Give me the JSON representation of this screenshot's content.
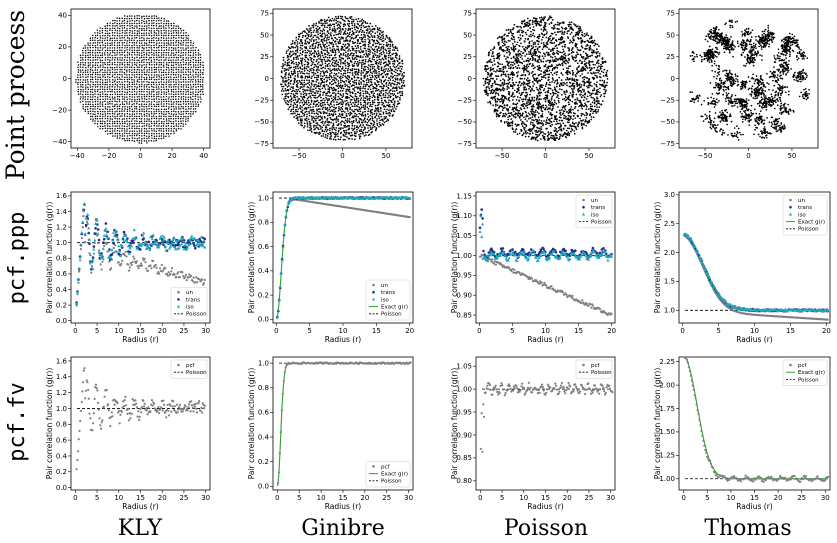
{
  "row_labels": [
    "Point process",
    "pcf.ppp",
    "pcf.fv"
  ],
  "column_labels": [
    "KLY",
    "Ginibre",
    "Poisson",
    "Thomas"
  ],
  "colors": {
    "un": "#808080",
    "trans": "#1f2f8f",
    "iso": "#20a8b8",
    "exact": "#2ca02c",
    "pcf": "#808080",
    "poisson_line": "#000000",
    "points": "#000000"
  },
  "chart_data": [
    {
      "id": "pp-kly",
      "type": "scatter",
      "row": 0,
      "col": 0,
      "pattern": "lattice",
      "radius": 41,
      "xlim": [
        -44,
        44
      ],
      "ylim": [
        -44,
        44
      ],
      "xticks": [
        -40,
        -20,
        0,
        20,
        40
      ],
      "yticks": [
        -40,
        -20,
        0,
        20,
        40
      ],
      "xtick_labels": [
        "−40",
        "−20",
        "0",
        "20",
        "40"
      ],
      "ytick_labels": [
        "−40",
        "−20",
        "0",
        "20",
        "40"
      ]
    },
    {
      "id": "pp-ginibre",
      "type": "scatter",
      "row": 0,
      "col": 1,
      "pattern": "repulsive",
      "radius": 72,
      "xlim": [
        -80,
        80
      ],
      "ylim": [
        -80,
        80
      ],
      "xticks": [
        -50,
        0,
        50
      ],
      "yticks": [
        -75,
        -50,
        -25,
        0,
        25,
        50,
        75
      ],
      "xtick_labels": [
        "−50",
        "0",
        "50"
      ],
      "ytick_labels": [
        "−75",
        "−50",
        "−25",
        "0",
        "25",
        "50",
        "75"
      ]
    },
    {
      "id": "pp-poisson",
      "type": "scatter",
      "row": 0,
      "col": 2,
      "pattern": "random",
      "radius": 72,
      "xlim": [
        -80,
        80
      ],
      "ylim": [
        -80,
        80
      ],
      "xticks": [
        -50,
        0,
        50
      ],
      "yticks": [
        -75,
        -50,
        -25,
        0,
        25,
        50,
        75
      ],
      "xtick_labels": [
        "−50",
        "0",
        "50"
      ],
      "ytick_labels": [
        "−75",
        "−50",
        "−25",
        "0",
        "25",
        "50",
        "75"
      ]
    },
    {
      "id": "pp-thomas",
      "type": "scatter",
      "row": 0,
      "col": 3,
      "pattern": "clustered",
      "radius": 72,
      "xlim": [
        -80,
        80
      ],
      "ylim": [
        -80,
        80
      ],
      "xticks": [
        -50,
        0,
        50
      ],
      "yticks": [
        -75,
        -50,
        -25,
        0,
        25,
        50,
        75
      ],
      "xtick_labels": [
        "−50",
        "0",
        "50"
      ],
      "ytick_labels": [
        "−75",
        "−50",
        "−25",
        "0",
        "25",
        "50",
        "75"
      ]
    },
    {
      "id": "ppp-kly",
      "type": "scatter",
      "row": 1,
      "col": 0,
      "model": "kly",
      "xlim": [
        -1,
        31
      ],
      "ylim": [
        -0.03,
        1.65
      ],
      "xticks": [
        0,
        5,
        10,
        15,
        20,
        25,
        30
      ],
      "yticks": [
        0,
        0.2,
        0.4,
        0.6,
        0.8,
        1.0,
        1.2,
        1.4,
        1.6
      ],
      "ytick_labels": [
        "0.0",
        "0.2",
        "0.4",
        "0.6",
        "0.8",
        "1.0",
        "1.2",
        "1.4",
        "1.6"
      ],
      "xlabel": "Radius (r)",
      "ylabel": "Pair correlation function (g(r))",
      "series": [
        {
          "name": "un",
          "kind": "dots"
        },
        {
          "name": "trans",
          "kind": "dots"
        },
        {
          "name": "iso",
          "kind": "triangles"
        },
        {
          "name": "Poisson",
          "kind": "dashed"
        }
      ],
      "legend": "bottom-right"
    },
    {
      "id": "ppp-ginibre",
      "type": "scatter",
      "row": 1,
      "col": 1,
      "model": "ginibre",
      "xlim": [
        -0.5,
        20.5
      ],
      "ylim": [
        -0.03,
        1.05
      ],
      "xticks": [
        0,
        5,
        10,
        15,
        20
      ],
      "yticks": [
        0,
        0.2,
        0.4,
        0.6,
        0.8,
        1.0
      ],
      "ytick_labels": [
        "0.0",
        "0.2",
        "0.4",
        "0.6",
        "0.8",
        "1.0"
      ],
      "xlabel": "Radius (r)",
      "ylabel": "Pair correlation function (g(r))",
      "series": [
        {
          "name": "un",
          "kind": "dots"
        },
        {
          "name": "trans",
          "kind": "dots"
        },
        {
          "name": "iso",
          "kind": "triangles"
        },
        {
          "name": "Exact g(r)",
          "kind": "line"
        },
        {
          "name": "Poisson",
          "kind": "dashed"
        }
      ],
      "legend": "bottom-right"
    },
    {
      "id": "ppp-poisson",
      "type": "scatter",
      "row": 1,
      "col": 2,
      "model": "poisson",
      "xlim": [
        -0.5,
        20.5
      ],
      "ylim": [
        0.83,
        1.16
      ],
      "xticks": [
        0,
        5,
        10,
        15,
        20
      ],
      "yticks": [
        0.85,
        0.9,
        0.95,
        1.0,
        1.05,
        1.1,
        1.15
      ],
      "ytick_labels": [
        "0.85",
        "0.90",
        "0.95",
        "1.00",
        "1.05",
        "1.10",
        "1.15"
      ],
      "xlabel": "Radius (r)",
      "ylabel": "Pair correlation function (g(r))",
      "series": [
        {
          "name": "un",
          "kind": "dots"
        },
        {
          "name": "trans",
          "kind": "dots"
        },
        {
          "name": "iso",
          "kind": "triangles"
        },
        {
          "name": "Poisson",
          "kind": "dashed"
        }
      ],
      "legend": "top-right"
    },
    {
      "id": "ppp-thomas",
      "type": "scatter",
      "row": 1,
      "col": 3,
      "model": "thomas",
      "xlim": [
        -0.5,
        20.5
      ],
      "ylim": [
        0.78,
        3.05
      ],
      "xticks": [
        0,
        5,
        10,
        15,
        20
      ],
      "yticks": [
        1.0,
        1.5,
        2.0,
        2.5,
        3.0
      ],
      "ytick_labels": [
        "1.0",
        "1.5",
        "2.0",
        "2.5",
        "3.0"
      ],
      "xlabel": "Radius (r)",
      "ylabel": "Pair correlation function (g(r))",
      "series": [
        {
          "name": "un",
          "kind": "dots"
        },
        {
          "name": "trans",
          "kind": "dots"
        },
        {
          "name": "iso",
          "kind": "triangles"
        },
        {
          "name": "Exact g(r)",
          "kind": "line"
        },
        {
          "name": "Poisson",
          "kind": "dashed"
        }
      ],
      "legend": "top-right"
    },
    {
      "id": "fv-kly",
      "type": "scatter",
      "row": 2,
      "col": 0,
      "model": "kly",
      "xlim": [
        -1,
        31
      ],
      "ylim": [
        -0.03,
        1.65
      ],
      "xticks": [
        0,
        5,
        10,
        15,
        20,
        25,
        30
      ],
      "yticks": [
        0,
        0.2,
        0.4,
        0.6,
        0.8,
        1.0,
        1.2,
        1.4,
        1.6
      ],
      "ytick_labels": [
        "0.0",
        "0.2",
        "0.4",
        "0.6",
        "0.8",
        "1.0",
        "1.2",
        "1.4",
        "1.6"
      ],
      "xlabel": "Radius (r)",
      "ylabel": "Pair correlation function (g(r))",
      "series": [
        {
          "name": "pcf",
          "kind": "dots"
        },
        {
          "name": "Poisson",
          "kind": "dashed"
        }
      ],
      "legend": "top-right"
    },
    {
      "id": "fv-ginibre",
      "type": "scatter",
      "row": 2,
      "col": 1,
      "model": "ginibre",
      "xlim": [
        -1,
        31
      ],
      "ylim": [
        -0.03,
        1.05
      ],
      "xticks": [
        0,
        5,
        10,
        15,
        20,
        25,
        30
      ],
      "yticks": [
        0,
        0.2,
        0.4,
        0.6,
        0.8,
        1.0
      ],
      "ytick_labels": [
        "0.0",
        "0.2",
        "0.4",
        "0.6",
        "0.8",
        "1.0"
      ],
      "xlabel": "Radius (r)",
      "ylabel": "Pair correlation function (g(r))",
      "series": [
        {
          "name": "pcf",
          "kind": "dots"
        },
        {
          "name": "Exact g(r)",
          "kind": "line"
        },
        {
          "name": "Poisson",
          "kind": "dashed"
        }
      ],
      "legend": "bottom-right"
    },
    {
      "id": "fv-poisson",
      "type": "scatter",
      "row": 2,
      "col": 2,
      "model": "poisson",
      "xlim": [
        -1,
        31
      ],
      "ylim": [
        0.78,
        1.07
      ],
      "xticks": [
        0,
        5,
        10,
        15,
        20,
        25,
        30
      ],
      "yticks": [
        0.8,
        0.85,
        0.9,
        0.95,
        1.0,
        1.05
      ],
      "ytick_labels": [
        "0.80",
        "0.85",
        "0.90",
        "0.95",
        "1.00",
        "1.05"
      ],
      "xlabel": "Radius (r)",
      "ylabel": "Pair correlation function (g(r))",
      "series": [
        {
          "name": "pcf",
          "kind": "dots"
        },
        {
          "name": "Poisson",
          "kind": "dashed"
        }
      ],
      "legend": "top-right"
    },
    {
      "id": "fv-thomas",
      "type": "scatter",
      "row": 2,
      "col": 3,
      "model": "thomas",
      "xlim": [
        -1,
        31
      ],
      "ylim": [
        0.88,
        2.3
      ],
      "xticks": [
        0,
        5,
        10,
        15,
        20,
        25,
        30
      ],
      "yticks": [
        1.0,
        1.25,
        1.5,
        1.75,
        2.0,
        2.25
      ],
      "ytick_labels": [
        "1.00",
        "1.25",
        "1.50",
        "1.75",
        "2.00",
        "2.25"
      ],
      "xlabel": "Radius (r)",
      "ylabel": "Pair correlation function (g(r))",
      "series": [
        {
          "name": "pcf",
          "kind": "dots"
        },
        {
          "name": "Exact g(r)",
          "kind": "line"
        },
        {
          "name": "Poisson",
          "kind": "dashed"
        }
      ],
      "legend": "top-right"
    }
  ]
}
